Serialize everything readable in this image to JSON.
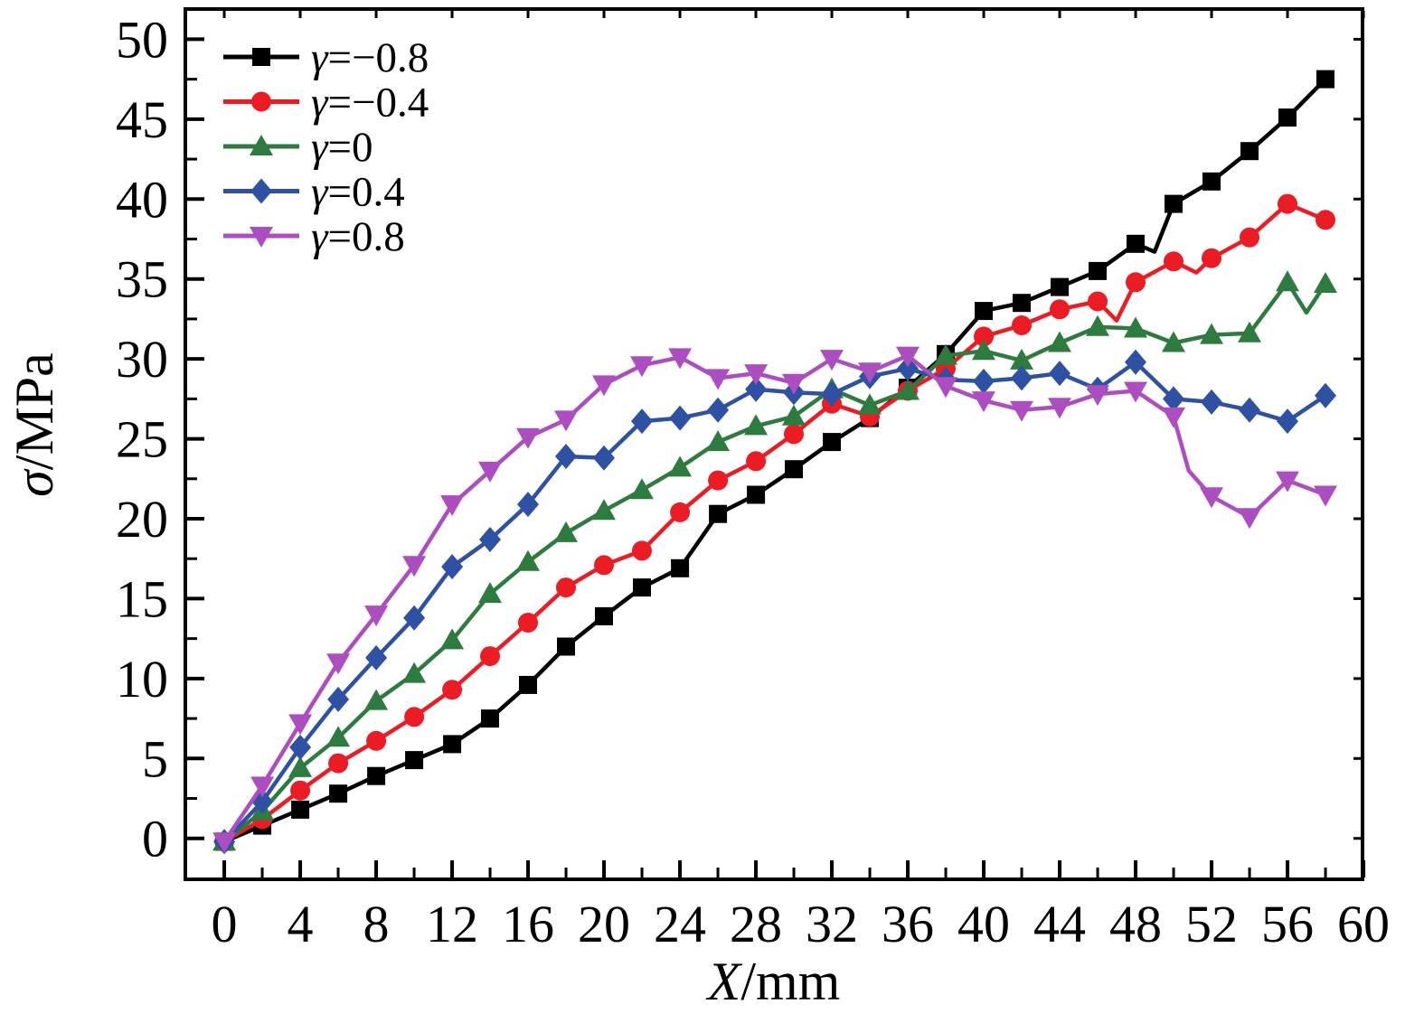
{
  "chart_data": {
    "type": "line",
    "title": "",
    "xlabel": "X/mm",
    "ylabel": "σ/MPa",
    "xlim": [
      -2.05,
      59.95
    ],
    "ylim": [
      -2.56,
      51.89
    ],
    "grid": false,
    "legend_position": "top-left",
    "x_ticks": {
      "major": [
        0,
        4,
        8,
        12,
        16,
        20,
        24,
        28,
        32,
        36,
        40,
        44,
        48,
        52,
        56,
        60
      ],
      "minor": [
        2,
        6,
        10,
        14,
        18,
        22,
        26,
        30,
        34,
        38,
        42,
        46,
        50,
        54,
        58
      ]
    },
    "y_ticks": {
      "major": [
        0,
        5,
        10,
        15,
        20,
        25,
        30,
        35,
        40,
        45,
        50
      ],
      "minor": [
        2.5,
        7.5,
        12.5,
        17.5,
        22.5,
        27.5,
        32.5,
        37.5,
        42.5,
        47.5
      ]
    },
    "x": [
      0,
      2,
      4,
      6,
      8,
      10,
      12,
      14,
      16,
      18,
      20,
      22,
      24,
      26,
      28,
      30,
      32,
      34,
      36,
      38,
      40,
      42,
      44,
      46,
      48,
      50,
      52,
      54,
      56,
      58
    ],
    "series": [
      {
        "id": "gamma-neg-0.8",
        "name": "γ=−0.8",
        "color": "#000000",
        "marker": "square",
        "values": [
          -0.2,
          0.8,
          1.8,
          2.8,
          3.9,
          4.9,
          5.9,
          7.5,
          9.6,
          12.0,
          13.9,
          15.7,
          16.9,
          20.3,
          21.5,
          23.1,
          24.8,
          26.3,
          28.2,
          30.3,
          33.0,
          33.5,
          34.5,
          35.5,
          37.2,
          39.7,
          41.1,
          43.0,
          45.1,
          47.5
        ],
        "extra_line_points": [
          [
            49,
            36.7
          ]
        ]
      },
      {
        "id": "gamma-neg-0.4",
        "name": "γ=−0.4",
        "color": "#EC1C24",
        "marker": "circle",
        "values": [
          -0.2,
          1.2,
          3.0,
          4.7,
          6.1,
          7.6,
          9.3,
          11.4,
          13.5,
          15.7,
          17.1,
          18.0,
          20.4,
          22.4,
          23.6,
          25.3,
          27.2,
          26.4,
          28.0,
          29.4,
          31.4,
          32.1,
          33.1,
          33.6,
          34.8,
          36.1,
          36.3,
          37.6,
          39.7,
          38.7
        ],
        "extra_line_points": [
          [
            47,
            32.4
          ],
          [
            51.2,
            35.4
          ]
        ]
      },
      {
        "id": "gamma-0",
        "name": "γ=0",
        "color": "#2E7B3F",
        "marker": "triangle-up",
        "values": [
          -0.2,
          1.7,
          4.4,
          6.3,
          8.6,
          10.3,
          12.4,
          15.3,
          17.3,
          19.1,
          20.5,
          21.8,
          23.2,
          24.8,
          25.8,
          26.4,
          28.1,
          27.1,
          28.0,
          30.2,
          30.5,
          29.9,
          31.0,
          32.0,
          31.9,
          31.0,
          31.5,
          31.6,
          34.8,
          34.7
        ],
        "extra_line_points": [
          [
            57,
            32.9
          ]
        ]
      },
      {
        "id": "gamma-0.4",
        "name": "γ=0.4",
        "color": "#2E51A3",
        "marker": "diamond",
        "values": [
          -0.2,
          2.3,
          5.7,
          8.7,
          11.3,
          13.8,
          17.0,
          18.7,
          20.9,
          23.9,
          23.8,
          26.1,
          26.3,
          26.8,
          28.1,
          27.9,
          27.8,
          28.9,
          29.4,
          28.7,
          28.6,
          28.8,
          29.1,
          28.1,
          29.8,
          27.5,
          27.3,
          26.8,
          26.1,
          27.7
        ],
        "extra_line_points": []
      },
      {
        "id": "gamma-0.8",
        "name": "γ=0.8",
        "color": "#AC4EC0",
        "marker": "triangle-down",
        "values": [
          -0.2,
          3.3,
          7.2,
          11.0,
          14.0,
          17.1,
          20.9,
          23.0,
          25.1,
          26.2,
          28.4,
          29.6,
          30.1,
          28.8,
          29.1,
          28.5,
          30.0,
          29.2,
          30.2,
          28.3,
          27.4,
          26.8,
          27.0,
          27.8,
          28.0,
          26.4,
          21.4,
          20.1,
          22.4,
          21.5
        ],
        "extra_line_points": [
          [
            50.8,
            23.0
          ]
        ]
      }
    ]
  }
}
